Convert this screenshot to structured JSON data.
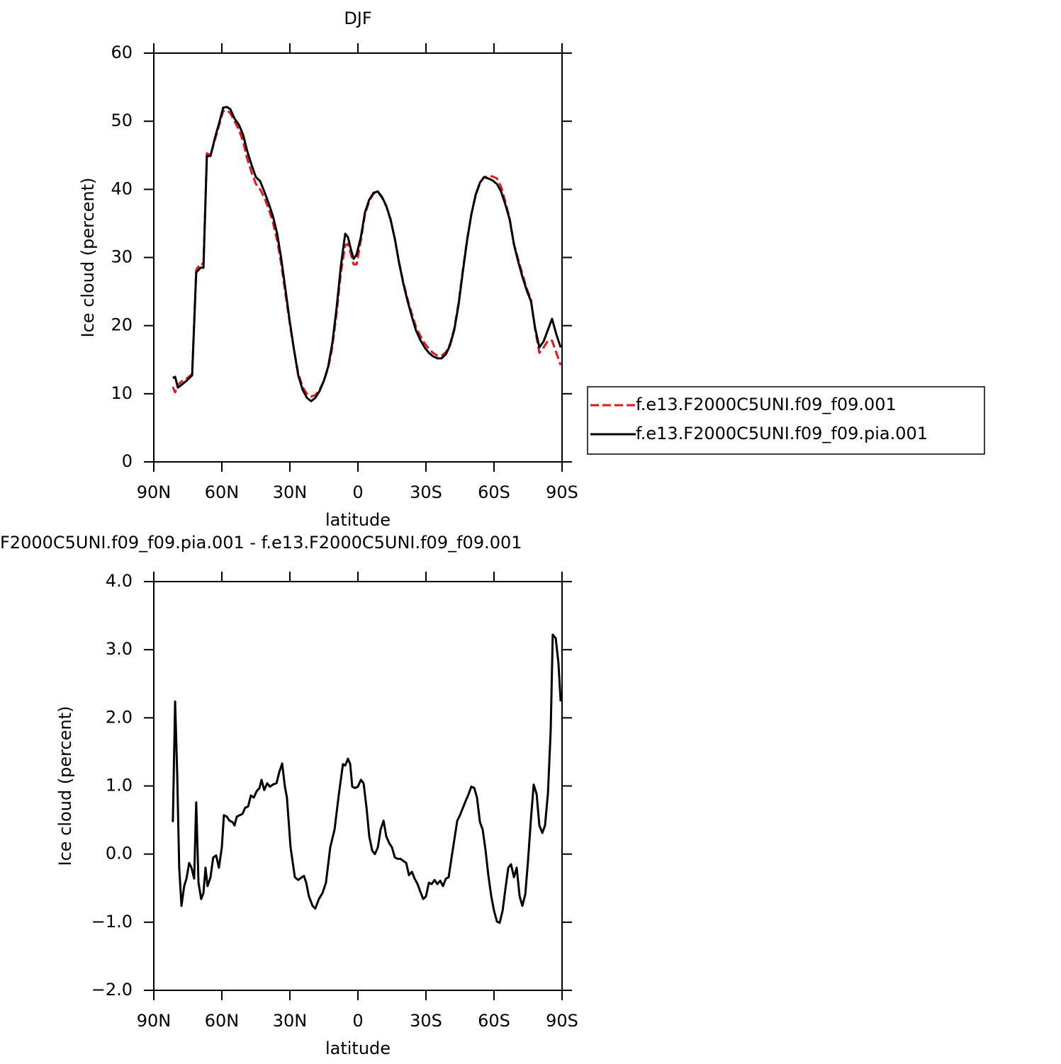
{
  "chart_data": [
    {
      "type": "line",
      "title": "DJF",
      "xlabel": "latitude",
      "ylabel": "Ice cloud (percent)",
      "x": [
        81.6,
        80.6,
        79.4,
        77.8,
        75.6,
        73.1,
        71.3,
        69.4,
        68.1,
        66.6,
        65.0,
        63.1,
        61.3,
        59.4,
        57.8,
        56.3,
        54.4,
        52.5,
        50.6,
        48.8,
        46.9,
        45.0,
        43.1,
        41.3,
        39.4,
        37.5,
        35.6,
        33.8,
        31.9,
        30.0,
        28.1,
        26.3,
        24.4,
        22.5,
        20.6,
        18.8,
        16.9,
        15.0,
        13.1,
        11.3,
        9.4,
        7.5,
        5.6,
        4.4,
        3.1,
        1.9,
        0.6,
        -1.3,
        -3.1,
        -5.0,
        -6.9,
        -8.8,
        -10.6,
        -12.5,
        -14.4,
        -16.3,
        -18.1,
        -20.0,
        -21.9,
        -23.8,
        -25.6,
        -27.5,
        -29.4,
        -31.3,
        -33.1,
        -35.0,
        -36.9,
        -38.8,
        -40.6,
        -42.5,
        -44.4,
        -46.3,
        -48.1,
        -50.0,
        -51.9,
        -53.8,
        -55.6,
        -57.5,
        -59.4,
        -61.3,
        -63.1,
        -65.0,
        -66.9,
        -68.8,
        -70.6,
        -72.5,
        -74.4,
        -76.3,
        -78.1,
        -80.0,
        -81.9,
        -83.8,
        -85.6,
        -87.5,
        -89.4
      ],
      "series": [
        {
          "name": "f.e13.F2000C5UNI.f09_f09.001",
          "color": "#e8141b",
          "dashed": true,
          "values": [
            11.0,
            10.2,
            11.3,
            11.8,
            12.2,
            12.9,
            28.2,
            29.1,
            29.0,
            45.3,
            45.0,
            47.2,
            49.3,
            51.5,
            51.6,
            51.2,
            50.0,
            48.8,
            47.0,
            44.5,
            42.5,
            40.8,
            40.0,
            38.8,
            37.2,
            35.2,
            32.5,
            29.0,
            24.5,
            20.2,
            16.3,
            13.0,
            11.0,
            10.0,
            9.6,
            9.8,
            10.6,
            11.9,
            13.8,
            16.8,
            21.8,
            27.8,
            31.8,
            32.0,
            30.5,
            29.0,
            29.0,
            32.5,
            36.3,
            38.3,
            39.4,
            39.6,
            38.8,
            37.5,
            35.5,
            32.7,
            29.4,
            26.4,
            23.9,
            21.7,
            19.8,
            18.5,
            17.4,
            16.6,
            16.0,
            15.6,
            15.6,
            16.1,
            17.3,
            19.6,
            23.4,
            28.3,
            32.6,
            36.3,
            39.1,
            40.9,
            41.8,
            41.9,
            41.9,
            41.6,
            40.4,
            38.2,
            35.7,
            32.0,
            29.8,
            27.6,
            25.5,
            23.8,
            19.5,
            16.0,
            16.8,
            17.8,
            17.8,
            16.0,
            14.2
          ]
        },
        {
          "name": "f.e13.F2000C5UNI.f09_f09.pia.001",
          "color": "#000000",
          "dashed": false,
          "values": [
            12.3,
            12.5,
            10.9,
            11.3,
            11.9,
            12.7,
            27.8,
            28.5,
            28.5,
            44.9,
            44.9,
            47.5,
            49.6,
            52.0,
            52.1,
            51.8,
            50.4,
            49.5,
            48.0,
            45.6,
            43.6,
            41.8,
            41.2,
            39.7,
            38.0,
            36.1,
            33.5,
            29.8,
            25.2,
            20.5,
            16.3,
            12.7,
            10.6,
            9.4,
            8.9,
            9.4,
            10.4,
            11.9,
            14.0,
            17.4,
            22.6,
            28.8,
            33.5,
            33.0,
            31.2,
            29.8,
            30.4,
            33.0,
            36.6,
            38.5,
            39.5,
            39.7,
            38.9,
            37.6,
            35.6,
            32.7,
            29.3,
            26.2,
            23.6,
            21.3,
            19.3,
            17.9,
            16.8,
            16.0,
            15.5,
            15.2,
            15.2,
            15.8,
            17.1,
            19.4,
            23.1,
            28.0,
            32.4,
            36.3,
            39.2,
            41.0,
            41.8,
            41.6,
            41.3,
            40.8,
            39.7,
            37.8,
            35.6,
            31.9,
            29.5,
            27.2,
            25.2,
            23.6,
            19.7,
            16.8,
            17.7,
            19.4,
            21.0,
            18.7,
            16.8
          ]
        }
      ],
      "xlim": [
        90,
        -90
      ],
      "xticks": [
        {
          "value": 90,
          "label": "90N"
        },
        {
          "value": 60,
          "label": "60N"
        },
        {
          "value": 30,
          "label": "30N"
        },
        0,
        {
          "value": -30,
          "label": "30S"
        },
        {
          "value": -60,
          "label": "60S"
        },
        {
          "value": -90,
          "label": "90S"
        }
      ],
      "ylim": [
        0,
        60
      ],
      "yticks": [
        0,
        10,
        20,
        30,
        40,
        50,
        60
      ],
      "legend": "right"
    },
    {
      "type": "line",
      "title": "F2000C5UNI.f09_f09.pia.001 - f.e13.F2000C5UNI.f09_f09.001",
      "xlabel": "latitude",
      "ylabel": "Ice cloud (percent)",
      "x": [
        81.6,
        80.6,
        79.7,
        78.8,
        77.8,
        76.6,
        75.6,
        74.4,
        73.4,
        72.2,
        71.3,
        70.3,
        69.1,
        68.1,
        67.2,
        66.3,
        65.0,
        63.8,
        62.5,
        61.3,
        60.0,
        59.1,
        57.8,
        56.6,
        55.3,
        54.4,
        53.4,
        52.2,
        50.9,
        49.7,
        48.4,
        47.2,
        45.9,
        44.7,
        43.4,
        42.5,
        41.3,
        40.0,
        38.8,
        37.5,
        35.9,
        34.7,
        33.4,
        32.2,
        31.3,
        29.7,
        27.8,
        26.3,
        24.7,
        23.8,
        22.8,
        21.6,
        20.0,
        18.8,
        17.2,
        15.6,
        14.1,
        12.2,
        10.3,
        8.4,
        6.6,
        5.6,
        4.4,
        3.4,
        2.5,
        1.3,
        0.0,
        -1.3,
        -2.5,
        -3.8,
        -5.0,
        -6.3,
        -7.5,
        -8.8,
        -10.0,
        -11.3,
        -12.5,
        -13.8,
        -15.0,
        -16.3,
        -17.5,
        -18.8,
        -20.0,
        -21.3,
        -22.5,
        -23.8,
        -25.0,
        -26.3,
        -27.5,
        -28.8,
        -30.0,
        -31.3,
        -32.5,
        -33.8,
        -35.0,
        -36.3,
        -37.5,
        -38.8,
        -40.0,
        -41.3,
        -42.5,
        -43.8,
        -45.0,
        -46.3,
        -47.5,
        -48.8,
        -50.0,
        -51.3,
        -52.5,
        -53.8,
        -55.0,
        -56.3,
        -57.5,
        -58.8,
        -60.0,
        -61.3,
        -62.5,
        -63.8,
        -65.0,
        -66.3,
        -67.5,
        -68.8,
        -70.0,
        -71.3,
        -72.5,
        -73.8,
        -75.0,
        -76.3,
        -77.5,
        -78.8,
        -80.0,
        -81.3,
        -82.5,
        -83.8,
        -85.0,
        -85.9,
        -87.2,
        -88.4,
        -89.4
      ],
      "series": [
        {
          "color": "#000000",
          "dashed": false,
          "values": [
            0.47,
            2.24,
            1.2,
            -0.2,
            -0.76,
            -0.47,
            -0.36,
            -0.13,
            -0.2,
            -0.36,
            0.76,
            -0.42,
            -0.66,
            -0.57,
            -0.2,
            -0.47,
            -0.34,
            -0.05,
            -0.02,
            -0.2,
            0.1,
            0.57,
            0.55,
            0.49,
            0.47,
            0.42,
            0.55,
            0.57,
            0.59,
            0.68,
            0.7,
            0.86,
            0.83,
            0.92,
            0.97,
            1.09,
            0.94,
            1.04,
            0.99,
            1.02,
            1.04,
            1.2,
            1.33,
            0.99,
            0.83,
            0.1,
            -0.34,
            -0.38,
            -0.34,
            -0.32,
            -0.42,
            -0.62,
            -0.76,
            -0.8,
            -0.66,
            -0.57,
            -0.42,
            0.1,
            0.36,
            0.88,
            1.32,
            1.3,
            1.4,
            1.32,
            0.99,
            0.97,
            0.99,
            1.09,
            1.04,
            0.68,
            0.26,
            0.05,
            0.0,
            0.1,
            0.36,
            0.49,
            0.26,
            0.16,
            0.1,
            -0.05,
            -0.07,
            -0.07,
            -0.1,
            -0.13,
            -0.31,
            -0.26,
            -0.36,
            -0.44,
            -0.55,
            -0.66,
            -0.62,
            -0.42,
            -0.44,
            -0.38,
            -0.44,
            -0.39,
            -0.47,
            -0.36,
            -0.34,
            -0.05,
            0.21,
            0.49,
            0.57,
            0.68,
            0.78,
            0.88,
            0.99,
            0.97,
            0.83,
            0.47,
            0.36,
            0.05,
            -0.31,
            -0.62,
            -0.83,
            -0.99,
            -1.01,
            -0.83,
            -0.52,
            -0.2,
            -0.15,
            -0.34,
            -0.2,
            -0.62,
            -0.76,
            -0.59,
            -0.1,
            0.52,
            1.02,
            0.88,
            0.42,
            0.31,
            0.42,
            0.9,
            1.82,
            3.22,
            3.17,
            2.81,
            2.24
          ]
        }
      ],
      "xlim": [
        90,
        -90
      ],
      "xticks": [
        {
          "value": 90,
          "label": "90N"
        },
        {
          "value": 60,
          "label": "60N"
        },
        {
          "value": 30,
          "label": "30N"
        },
        0,
        {
          "value": -30,
          "label": "30S"
        },
        {
          "value": -60,
          "label": "60S"
        },
        {
          "value": -90,
          "label": "90S"
        }
      ],
      "ylim": [
        -2,
        4
      ],
      "yticks": [
        {
          "value": -2,
          "label": "−2.0"
        },
        {
          "value": -1,
          "label": "−1.0"
        },
        {
          "value": 0,
          "label": "0.0"
        },
        {
          "value": 1,
          "label": "1.0"
        },
        {
          "value": 2,
          "label": "2.0"
        },
        {
          "value": 3,
          "label": "3.0"
        },
        {
          "value": 4,
          "label": "4.0"
        }
      ]
    }
  ]
}
